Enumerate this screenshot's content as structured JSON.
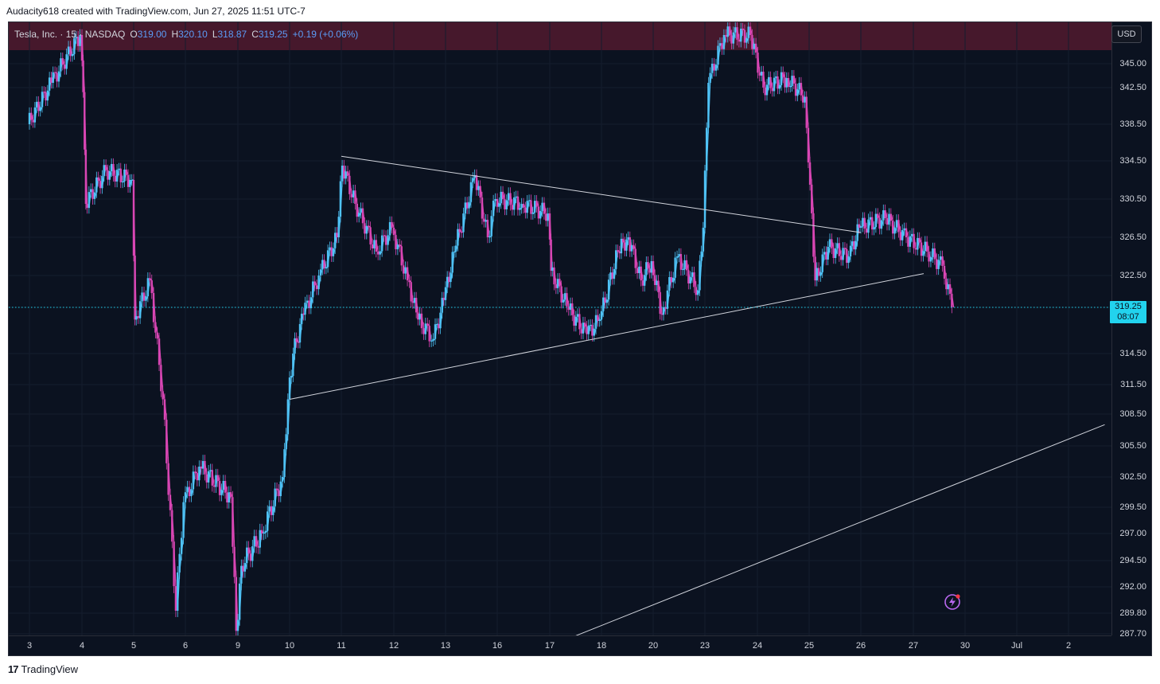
{
  "caption": "Audacity618 created with TradingView.com, Jun 27, 2025 11:51 UTC-7",
  "legend": {
    "symbol": "Tesla, Inc. · 15 · NASDAQ",
    "o_label": "O",
    "o_value": "319.00",
    "h_label": "H",
    "h_value": "320.10",
    "l_label": "L",
    "l_value": "318.87",
    "c_label": "C",
    "c_value": "319.25",
    "change": "+0.19 (+0.06%)"
  },
  "currency_button": "USD",
  "last_price": {
    "price": "319.25",
    "countdown": "08:07"
  },
  "footer_brand": "TradingView",
  "colors": {
    "background": "#0b1220",
    "up_candle": "#4fc3f7",
    "down_candle": "#d946b4",
    "trendline": "#d1d4dc",
    "last_price": "#22d3ee"
  },
  "chart_data": {
    "type": "line",
    "instrument": "Tesla, Inc.",
    "interval": "15",
    "exchange": "NASDAQ",
    "x_ticks": [
      "3",
      "4",
      "5",
      "6",
      "9",
      "10",
      "11",
      "12",
      "13",
      "16",
      "17",
      "18",
      "20",
      "23",
      "24",
      "25",
      "26",
      "27",
      "30",
      "Jul",
      "2"
    ],
    "y_ticks": [
      "345.00",
      "342.50",
      "338.50",
      "334.50",
      "330.50",
      "326.50",
      "322.50",
      "319.25",
      "314.50",
      "311.50",
      "308.50",
      "305.50",
      "302.50",
      "299.50",
      "297.00",
      "294.50",
      "292.00",
      "289.80",
      "287.70"
    ],
    "price_path": [
      {
        "t": 0.0,
        "p": 338.5
      },
      {
        "t": 0.45,
        "p": 343.0
      },
      {
        "t": 1.0,
        "p": 348.0
      },
      {
        "t": 1.05,
        "p": 342.0
      },
      {
        "t": 1.1,
        "p": 330.0
      },
      {
        "t": 1.5,
        "p": 333.5
      },
      {
        "t": 2.0,
        "p": 332.5
      },
      {
        "t": 2.05,
        "p": 318.0
      },
      {
        "t": 2.35,
        "p": 322.0
      },
      {
        "t": 2.6,
        "p": 310.0
      },
      {
        "t": 2.85,
        "p": 290.0
      },
      {
        "t": 3.0,
        "p": 300.0
      },
      {
        "t": 3.3,
        "p": 303.5
      },
      {
        "t": 3.9,
        "p": 300.5
      },
      {
        "t": 4.0,
        "p": 288.0
      },
      {
        "t": 4.1,
        "p": 294.0
      },
      {
        "t": 4.5,
        "p": 297.0
      },
      {
        "t": 4.9,
        "p": 302.5
      },
      {
        "t": 5.0,
        "p": 310.0
      },
      {
        "t": 5.1,
        "p": 314.5
      },
      {
        "t": 5.3,
        "p": 318.5
      },
      {
        "t": 5.6,
        "p": 322.5
      },
      {
        "t": 5.95,
        "p": 326.5
      },
      {
        "t": 6.05,
        "p": 334.0
      },
      {
        "t": 6.3,
        "p": 330.0
      },
      {
        "t": 6.7,
        "p": 325.0
      },
      {
        "t": 7.0,
        "p": 327.5
      },
      {
        "t": 7.3,
        "p": 322.0
      },
      {
        "t": 7.5,
        "p": 318.0
      },
      {
        "t": 7.8,
        "p": 316.0
      },
      {
        "t": 8.0,
        "p": 320.0
      },
      {
        "t": 8.2,
        "p": 325.0
      },
      {
        "t": 8.6,
        "p": 333.0
      },
      {
        "t": 8.85,
        "p": 326.5
      },
      {
        "t": 9.0,
        "p": 330.5
      },
      {
        "t": 9.5,
        "p": 330.0
      },
      {
        "t": 10.0,
        "p": 329.0
      },
      {
        "t": 10.05,
        "p": 323.0
      },
      {
        "t": 10.4,
        "p": 319.0
      },
      {
        "t": 10.75,
        "p": 316.5
      },
      {
        "t": 11.0,
        "p": 318.0
      },
      {
        "t": 11.35,
        "p": 325.0
      },
      {
        "t": 11.55,
        "p": 326.5
      },
      {
        "t": 11.8,
        "p": 322.0
      },
      {
        "t": 12.0,
        "p": 324.0
      },
      {
        "t": 12.2,
        "p": 318.5
      },
      {
        "t": 12.5,
        "p": 324.5
      },
      {
        "t": 12.9,
        "p": 321.0
      },
      {
        "t": 13.0,
        "p": 327.5
      },
      {
        "t": 13.1,
        "p": 343.0
      },
      {
        "t": 13.4,
        "p": 348.0
      },
      {
        "t": 13.9,
        "p": 348.0
      },
      {
        "t": 14.15,
        "p": 342.5
      },
      {
        "t": 14.6,
        "p": 343.5
      },
      {
        "t": 14.95,
        "p": 341.5
      },
      {
        "t": 15.05,
        "p": 332.0
      },
      {
        "t": 15.15,
        "p": 322.0
      },
      {
        "t": 15.4,
        "p": 325.5
      },
      {
        "t": 15.8,
        "p": 324.5
      },
      {
        "t": 16.0,
        "p": 327.5
      },
      {
        "t": 16.5,
        "p": 328.5
      },
      {
        "t": 16.9,
        "p": 326.5
      },
      {
        "t": 17.3,
        "p": 325.0
      },
      {
        "t": 17.6,
        "p": 323.5
      },
      {
        "t": 17.78,
        "p": 319.25
      }
    ],
    "trendlines": [
      {
        "t1": 6.0,
        "p1": 335.0,
        "t2": 16.0,
        "p2": 327.0
      },
      {
        "t1": 5.0,
        "p1": 310.0,
        "t2": 17.2,
        "p2": 322.7
      },
      {
        "t1": 10.5,
        "p1": 287.5,
        "t2": 20.7,
        "p2": 307.5
      }
    ],
    "last_value": 319.25
  }
}
